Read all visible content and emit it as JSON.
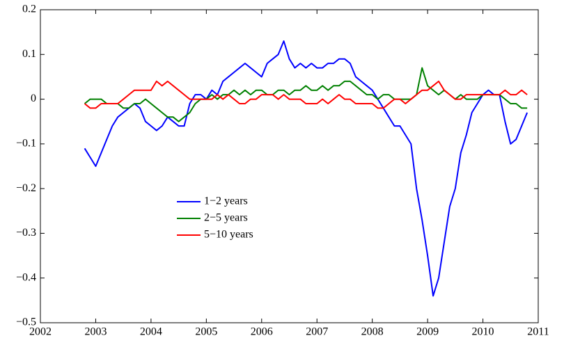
{
  "chart_data": {
    "type": "line",
    "x": [
      2002.8,
      2002.9,
      2003.0,
      2003.1,
      2003.2,
      2003.3,
      2003.4,
      2003.5,
      2003.6,
      2003.7,
      2003.8,
      2003.9,
      2004.0,
      2004.1,
      2004.2,
      2004.3,
      2004.4,
      2004.5,
      2004.6,
      2004.7,
      2004.8,
      2004.9,
      2005.0,
      2005.1,
      2005.2,
      2005.3,
      2005.4,
      2005.5,
      2005.6,
      2005.7,
      2005.8,
      2005.9,
      2006.0,
      2006.1,
      2006.2,
      2006.3,
      2006.4,
      2006.5,
      2006.6,
      2006.7,
      2006.8,
      2006.9,
      2007.0,
      2007.1,
      2007.2,
      2007.3,
      2007.4,
      2007.5,
      2007.6,
      2007.7,
      2007.8,
      2007.9,
      2008.0,
      2008.1,
      2008.2,
      2008.3,
      2008.4,
      2008.5,
      2008.6,
      2008.7,
      2008.8,
      2008.9,
      2009.0,
      2009.1,
      2009.2,
      2009.3,
      2009.4,
      2009.5,
      2009.6,
      2009.7,
      2009.8,
      2009.9,
      2010.0,
      2010.1,
      2010.2,
      2010.3,
      2010.4,
      2010.5,
      2010.6,
      2010.7,
      2010.8
    ],
    "series": [
      {
        "name": "1−2 years",
        "color": "#0000ff",
        "values": [
          -0.11,
          -0.13,
          -0.15,
          -0.12,
          -0.09,
          -0.06,
          -0.04,
          -0.03,
          -0.02,
          -0.01,
          -0.02,
          -0.05,
          -0.06,
          -0.07,
          -0.06,
          -0.04,
          -0.05,
          -0.06,
          -0.06,
          -0.01,
          0.01,
          0.01,
          0,
          0.02,
          0.01,
          0.04,
          0.05,
          0.06,
          0.07,
          0.08,
          0.07,
          0.06,
          0.05,
          0.08,
          0.09,
          0.1,
          0.13,
          0.09,
          0.07,
          0.08,
          0.07,
          0.08,
          0.07,
          0.07,
          0.08,
          0.08,
          0.09,
          0.09,
          0.08,
          0.05,
          0.04,
          0.03,
          0.02,
          0,
          -0.02,
          -0.04,
          -0.06,
          -0.06,
          -0.08,
          -0.1,
          -0.2,
          -0.27,
          -0.35,
          -0.44,
          -0.4,
          -0.32,
          -0.24,
          -0.2,
          -0.12,
          -0.08,
          -0.03,
          -0.01,
          0.01,
          0.02,
          0.01,
          0.01,
          -0.05,
          -0.1,
          -0.09,
          -0.06,
          -0.03
        ]
      },
      {
        "name": "2−5 years",
        "color": "#008000",
        "values": [
          -0.01,
          0,
          0,
          0,
          -0.01,
          -0.01,
          -0.01,
          -0.02,
          -0.02,
          -0.01,
          -0.01,
          0,
          -0.01,
          -0.02,
          -0.03,
          -0.04,
          -0.04,
          -0.05,
          -0.04,
          -0.03,
          -0.01,
          0,
          0,
          0.01,
          0,
          0.01,
          0.01,
          0.02,
          0.01,
          0.02,
          0.01,
          0.02,
          0.02,
          0.01,
          0.01,
          0.02,
          0.02,
          0.01,
          0.02,
          0.02,
          0.03,
          0.02,
          0.02,
          0.03,
          0.02,
          0.03,
          0.03,
          0.04,
          0.04,
          0.03,
          0.02,
          0.01,
          0.01,
          0,
          0.01,
          0.01,
          0,
          0,
          0,
          0,
          0.01,
          0.07,
          0.03,
          0.02,
          0.01,
          0.02,
          0.01,
          0,
          0.01,
          0,
          0,
          0,
          0.01,
          0.01,
          0.01,
          0.01,
          0,
          -0.01,
          -0.01,
          -0.02,
          -0.02
        ]
      },
      {
        "name": "5−10 years",
        "color": "#ff0000",
        "values": [
          -0.01,
          -0.02,
          -0.02,
          -0.01,
          -0.01,
          -0.01,
          -0.01,
          0,
          0.01,
          0.02,
          0.02,
          0.02,
          0.02,
          0.04,
          0.03,
          0.04,
          0.03,
          0.02,
          0.01,
          0,
          0,
          0,
          0,
          0,
          0.01,
          0,
          0.01,
          0,
          -0.01,
          -0.01,
          0,
          0,
          0.01,
          0.01,
          0.01,
          0,
          0.01,
          0,
          0,
          0,
          -0.01,
          -0.01,
          -0.01,
          0,
          -0.01,
          0,
          0.01,
          0,
          0,
          -0.01,
          -0.01,
          -0.01,
          -0.01,
          -0.02,
          -0.02,
          -0.01,
          0,
          0,
          -0.01,
          0,
          0.01,
          0.02,
          0.02,
          0.03,
          0.04,
          0.02,
          0.01,
          0,
          0,
          0.01,
          0.01,
          0.01,
          0.01,
          0.01,
          0.01,
          0.01,
          0.02,
          0.01,
          0.01,
          0.02,
          0.01
        ]
      }
    ],
    "xlim": [
      2002,
      2011
    ],
    "xticks": [
      2002,
      2003,
      2004,
      2005,
      2006,
      2007,
      2008,
      2009,
      2010,
      2011
    ],
    "ylim": [
      -0.5,
      0.2
    ],
    "yticks": [
      {
        "value": -0.5,
        "label": "−0.5"
      },
      {
        "value": -0.4,
        "label": "−0.4"
      },
      {
        "value": -0.3,
        "label": "−0.3"
      },
      {
        "value": -0.2,
        "label": "−0.2"
      },
      {
        "value": -0.1,
        "label": "−0.1"
      },
      0,
      0.1,
      0.2
    ],
    "grid": false
  }
}
